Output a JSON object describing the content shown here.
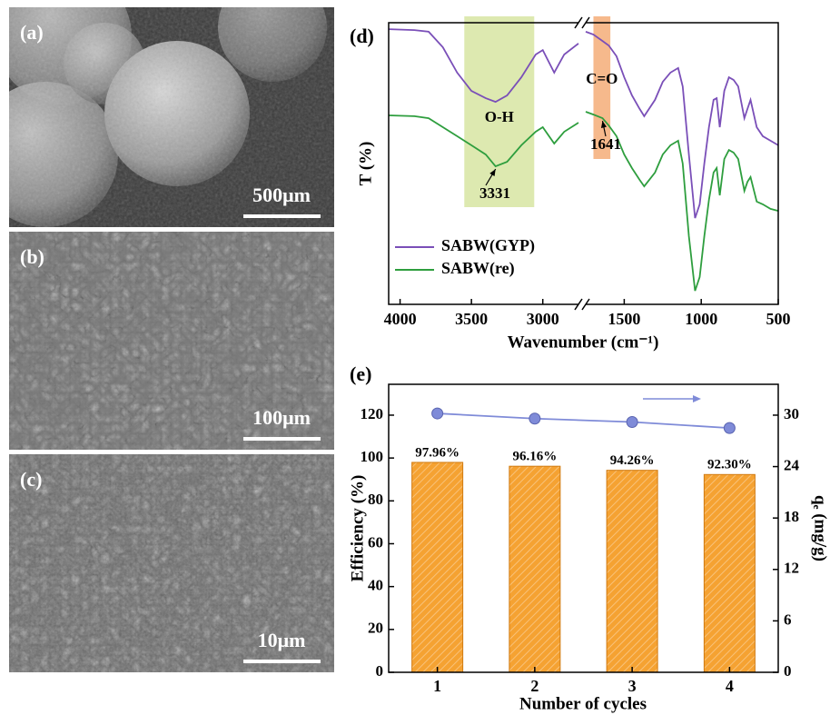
{
  "images": [
    {
      "label": "(a)",
      "scale": "500μm"
    },
    {
      "label": "(b)",
      "scale": "100μm"
    },
    {
      "label": "(c)",
      "scale": "10μm"
    }
  ],
  "chart_data": [
    {
      "type": "line",
      "panel": "(d)",
      "xlabel": "Wavenumber (cm⁻¹)",
      "ylabel": "T (%)",
      "xlim_segments": [
        [
          4080,
          2750
        ],
        [
          1750,
          500
        ]
      ],
      "ylim": [
        0,
        100
      ],
      "xticks": [
        4000,
        3500,
        3000,
        1500,
        1000,
        500
      ],
      "x_segments": [
        [
          4080,
          3900,
          3800,
          3700,
          3600,
          3500,
          3400,
          3331,
          3250,
          3150,
          3050,
          3000,
          2920,
          2850,
          2750
        ],
        [
          1750,
          1700,
          1641,
          1600,
          1550,
          1500,
          1450,
          1400,
          1370,
          1300,
          1250,
          1200,
          1150,
          1120,
          1080,
          1040,
          1010,
          980,
          950,
          920,
          900,
          880,
          850,
          820,
          790,
          760,
          720,
          700,
          680,
          640,
          600,
          550,
          500
        ]
      ],
      "series": [
        {
          "name": "SABW(GYP)",
          "color": "#7a4fb8",
          "values": [
            [
              97.7,
              97.4,
              96.8,
              91.3,
              82.3,
              75.8,
              73.2,
              71.9,
              74.2,
              80.6,
              88.7,
              90.3,
              82.3,
              88.7,
              92.6
            ],
            [
              96.8,
              95.8,
              93.5,
              91.9,
              88.1,
              80.6,
              74.2,
              69.4,
              66.8,
              72.6,
              79.0,
              82.3,
              83.9,
              77.4,
              53.2,
              30.6,
              35.5,
              50.0,
              62.9,
              72.6,
              73.2,
              62.9,
              75.8,
              80.6,
              79.7,
              77.4,
              66.1,
              69.4,
              72.6,
              62.9,
              59.7,
              58.1,
              56.5
            ]
          ]
        },
        {
          "name": "SABW(re)",
          "color": "#2e9e3e",
          "values": [
            [
              67.1,
              66.8,
              66.1,
              62.9,
              59.7,
              56.5,
              53.2,
              49.0,
              50.6,
              56.5,
              61.3,
              62.9,
              57.1,
              61.3,
              64.5
            ],
            [
              68.4,
              67.4,
              66.1,
              63.5,
              59.7,
              53.2,
              48.4,
              44.2,
              41.9,
              46.8,
              53.2,
              56.5,
              58.1,
              50.0,
              24.2,
              4.8,
              9.7,
              24.2,
              37.1,
              46.8,
              48.4,
              38.7,
              51.6,
              54.8,
              53.9,
              51.6,
              40.3,
              43.5,
              45.2,
              36.5,
              35.5,
              33.9,
              33.2
            ]
          ]
        }
      ],
      "bands": [
        {
          "label": "O-H",
          "range": [
            3550,
            3060
          ],
          "color": "#dde9b0"
        },
        {
          "label": "C=O",
          "range": [
            1700,
            1590
          ],
          "color": "#f6b98c"
        }
      ],
      "annotations": [
        {
          "x": 3331
        },
        {
          "x": 1641
        }
      ],
      "legend": "lower left"
    },
    {
      "type": "bar",
      "panel": "(e)",
      "xlabel": "Number of cycles",
      "ylabel": "Efficiency (%)",
      "y2label": "qₑ (mg/g)",
      "categories": [
        1,
        2,
        3,
        4
      ],
      "xlim": [
        0.5,
        4.5
      ],
      "values": [
        97.96,
        96.16,
        94.26,
        92.3
      ],
      "value_labels": [
        "97.96%",
        "96.16%",
        "94.26%",
        "92.30%"
      ],
      "color": "#f5a232",
      "line": {
        "color": "#7f8bd8",
        "axis": "y2",
        "values": [
          30.2,
          29.6,
          29.2,
          28.5
        ]
      },
      "ylim": [
        0,
        134.4
      ],
      "yticks": [
        0,
        20,
        40,
        60,
        80,
        100,
        120
      ],
      "y2lim": [
        0,
        33.6
      ],
      "y2ticks": [
        0,
        6,
        12,
        18,
        24,
        30
      ]
    }
  ]
}
